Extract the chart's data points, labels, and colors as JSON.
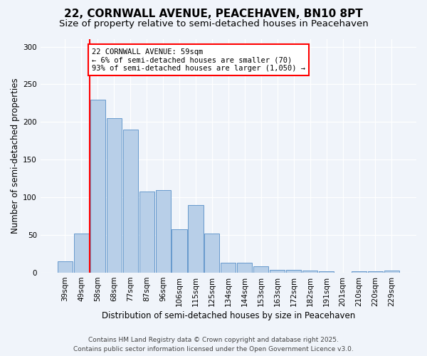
{
  "title": "22, CORNWALL AVENUE, PEACEHAVEN, BN10 8PT",
  "subtitle": "Size of property relative to semi-detached houses in Peacehaven",
  "xlabel": "Distribution of semi-detached houses by size in Peacehaven",
  "ylabel": "Number of semi-detached properties",
  "footer_line1": "Contains HM Land Registry data © Crown copyright and database right 2025.",
  "footer_line2": "Contains public sector information licensed under the Open Government Licence v3.0.",
  "bins": [
    "39sqm",
    "49sqm",
    "58sqm",
    "68sqm",
    "77sqm",
    "87sqm",
    "96sqm",
    "106sqm",
    "115sqm",
    "125sqm",
    "134sqm",
    "144sqm",
    "153sqm",
    "163sqm",
    "172sqm",
    "182sqm",
    "191sqm",
    "201sqm",
    "210sqm",
    "220sqm",
    "229sqm"
  ],
  "values": [
    15,
    52,
    230,
    205,
    190,
    108,
    110,
    58,
    90,
    52,
    13,
    13,
    9,
    4,
    4,
    3,
    2,
    0,
    2,
    2,
    3
  ],
  "bar_color": "#b8cfe8",
  "bar_edge_color": "#6699cc",
  "annotation_text": "22 CORNWALL AVENUE: 59sqm\n← 6% of semi-detached houses are smaller (70)\n93% of semi-detached houses are larger (1,050) →",
  "annotation_box_color": "white",
  "annotation_box_edge_color": "red",
  "vline_color": "red",
  "ylim": [
    0,
    310
  ],
  "yticks": [
    0,
    50,
    100,
    150,
    200,
    250,
    300
  ],
  "bg_color": "#f0f4fa",
  "plot_bg_color": "#f0f4fa",
  "title_fontsize": 11,
  "subtitle_fontsize": 9.5,
  "axis_label_fontsize": 8.5,
  "tick_fontsize": 7.5,
  "footer_fontsize": 6.5,
  "vline_x": 1.5
}
